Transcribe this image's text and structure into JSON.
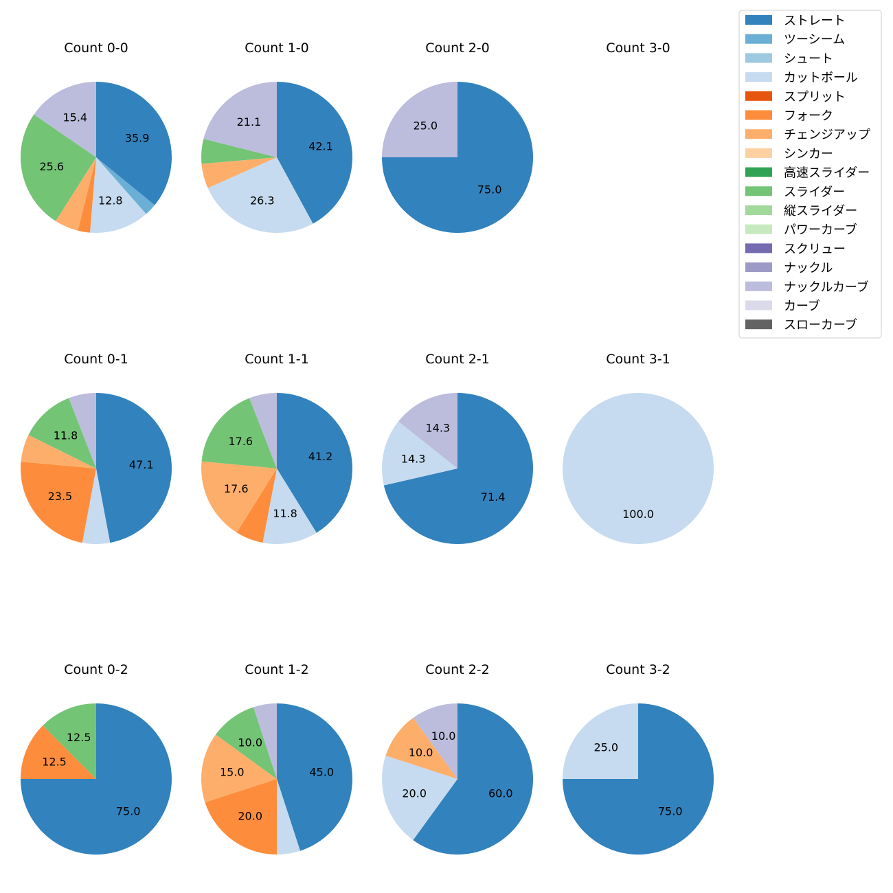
{
  "chart_data": {
    "type": "pie",
    "legend_position": "top-right",
    "legend": [
      {
        "name": "ストレート",
        "color": "#3182bd"
      },
      {
        "name": "ツーシーム",
        "color": "#6baed6"
      },
      {
        "name": "シュート",
        "color": "#9ecae1"
      },
      {
        "name": "カットボール",
        "color": "#c6dbef"
      },
      {
        "name": "スプリット",
        "color": "#e6550d"
      },
      {
        "name": "フォーク",
        "color": "#fd8d3c"
      },
      {
        "name": "チェンジアップ",
        "color": "#fdae6b"
      },
      {
        "name": "シンカー",
        "color": "#fdd0a2"
      },
      {
        "name": "高速スライダー",
        "color": "#31a354"
      },
      {
        "name": "スライダー",
        "color": "#74c476"
      },
      {
        "name": "縦スライダー",
        "color": "#a1d99b"
      },
      {
        "name": "パワーカーブ",
        "color": "#c7e9c0"
      },
      {
        "name": "スクリュー",
        "color": "#756bb1"
      },
      {
        "name": "ナックル",
        "color": "#9e9ac8"
      },
      {
        "name": "ナックルカーブ",
        "color": "#bcbddc"
      },
      {
        "name": "カーブ",
        "color": "#dadaeb"
      },
      {
        "name": "スローカーブ",
        "color": "#636363"
      }
    ],
    "charts": [
      {
        "title": "Count 0-0",
        "slices": [
          {
            "pitch": "ストレート",
            "value": 35.9,
            "label": "35.9"
          },
          {
            "pitch": "ツーシーム",
            "value": 2.6,
            "label": ""
          },
          {
            "pitch": "カットボール",
            "value": 12.8,
            "label": "12.8"
          },
          {
            "pitch": "フォーク",
            "value": 2.6,
            "label": ""
          },
          {
            "pitch": "チェンジアップ",
            "value": 5.1,
            "label": ""
          },
          {
            "pitch": "スライダー",
            "value": 25.6,
            "label": "25.6"
          },
          {
            "pitch": "ナックルカーブ",
            "value": 15.4,
            "label": "15.4"
          }
        ]
      },
      {
        "title": "Count 1-0",
        "slices": [
          {
            "pitch": "ストレート",
            "value": 42.1,
            "label": "42.1"
          },
          {
            "pitch": "カットボール",
            "value": 26.3,
            "label": "26.3"
          },
          {
            "pitch": "チェンジアップ",
            "value": 5.3,
            "label": ""
          },
          {
            "pitch": "スライダー",
            "value": 5.3,
            "label": ""
          },
          {
            "pitch": "ナックルカーブ",
            "value": 21.1,
            "label": "21.1"
          }
        ]
      },
      {
        "title": "Count 2-0",
        "slices": [
          {
            "pitch": "ストレート",
            "value": 75.0,
            "label": "75.0"
          },
          {
            "pitch": "ナックルカーブ",
            "value": 25.0,
            "label": "25.0"
          }
        ]
      },
      {
        "title": "Count 3-0",
        "slices": []
      },
      {
        "title": "Count 0-1",
        "slices": [
          {
            "pitch": "ストレート",
            "value": 47.1,
            "label": "47.1"
          },
          {
            "pitch": "カットボール",
            "value": 5.9,
            "label": ""
          },
          {
            "pitch": "フォーク",
            "value": 23.5,
            "label": "23.5"
          },
          {
            "pitch": "チェンジアップ",
            "value": 5.9,
            "label": ""
          },
          {
            "pitch": "スライダー",
            "value": 11.8,
            "label": "11.8"
          },
          {
            "pitch": "ナックルカーブ",
            "value": 5.9,
            "label": ""
          }
        ]
      },
      {
        "title": "Count 1-1",
        "slices": [
          {
            "pitch": "ストレート",
            "value": 41.2,
            "label": "41.2"
          },
          {
            "pitch": "カットボール",
            "value": 11.8,
            "label": "11.8"
          },
          {
            "pitch": "フォーク",
            "value": 5.9,
            "label": ""
          },
          {
            "pitch": "チェンジアップ",
            "value": 17.6,
            "label": "17.6"
          },
          {
            "pitch": "スライダー",
            "value": 17.6,
            "label": "17.6"
          },
          {
            "pitch": "ナックルカーブ",
            "value": 5.9,
            "label": ""
          }
        ]
      },
      {
        "title": "Count 2-1",
        "slices": [
          {
            "pitch": "ストレート",
            "value": 71.4,
            "label": "71.4"
          },
          {
            "pitch": "カットボール",
            "value": 14.3,
            "label": "14.3"
          },
          {
            "pitch": "ナックルカーブ",
            "value": 14.3,
            "label": "14.3"
          }
        ]
      },
      {
        "title": "Count 3-1",
        "slices": [
          {
            "pitch": "カットボール",
            "value": 100.0,
            "label": "100.0"
          }
        ]
      },
      {
        "title": "Count 0-2",
        "slices": [
          {
            "pitch": "ストレート",
            "value": 75.0,
            "label": "75.0"
          },
          {
            "pitch": "フォーク",
            "value": 12.5,
            "label": "12.5"
          },
          {
            "pitch": "スライダー",
            "value": 12.5,
            "label": "12.5"
          }
        ]
      },
      {
        "title": "Count 1-2",
        "slices": [
          {
            "pitch": "ストレート",
            "value": 45.0,
            "label": "45.0"
          },
          {
            "pitch": "カットボール",
            "value": 5.0,
            "label": ""
          },
          {
            "pitch": "フォーク",
            "value": 20.0,
            "label": "20.0"
          },
          {
            "pitch": "チェンジアップ",
            "value": 15.0,
            "label": "15.0"
          },
          {
            "pitch": "スライダー",
            "value": 10.0,
            "label": "10.0"
          },
          {
            "pitch": "ナックルカーブ",
            "value": 5.0,
            "label": ""
          }
        ]
      },
      {
        "title": "Count 2-2",
        "slices": [
          {
            "pitch": "ストレート",
            "value": 60.0,
            "label": "60.0"
          },
          {
            "pitch": "カットボール",
            "value": 20.0,
            "label": "20.0"
          },
          {
            "pitch": "チェンジアップ",
            "value": 10.0,
            "label": "10.0"
          },
          {
            "pitch": "ナックルカーブ",
            "value": 10.0,
            "label": "10.0"
          }
        ]
      },
      {
        "title": "Count 3-2",
        "slices": [
          {
            "pitch": "ストレート",
            "value": 75.0,
            "label": "75.0"
          },
          {
            "pitch": "カットボール",
            "value": 25.0,
            "label": "25.0"
          }
        ]
      }
    ]
  }
}
